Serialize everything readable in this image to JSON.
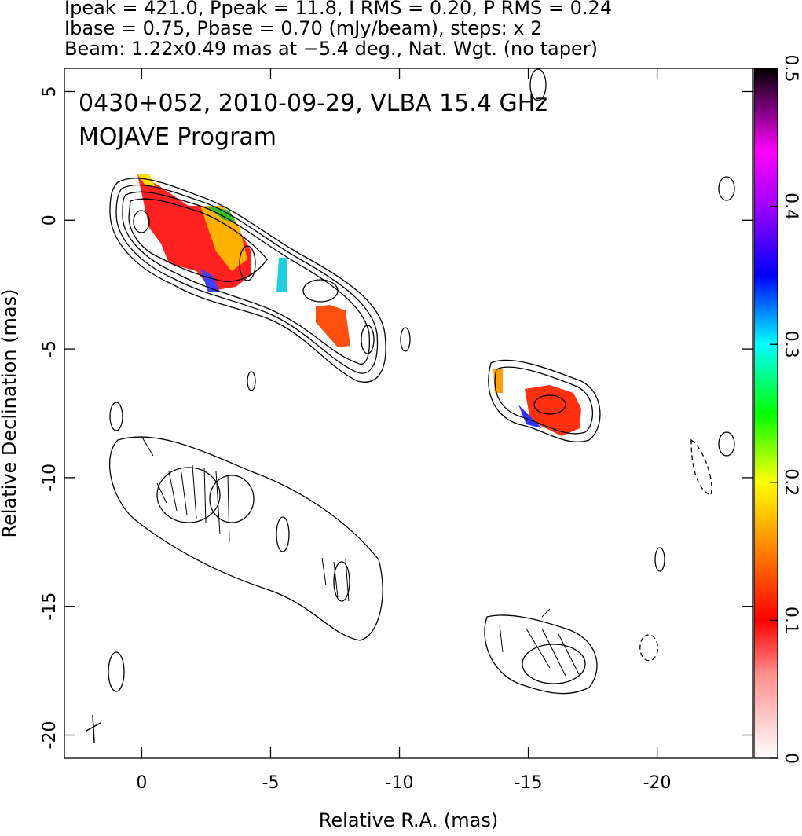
{
  "chart_data": {
    "type": "contour",
    "title_lines": [
      "Ipeak = 421.0, Ppeak = 11.8, I RMS = 0.20, P RMS = 0.24",
      "Ibase = 0.75, Pbase = 0.70 (mJy/beam), steps: x 2",
      "Beam: 1.22x0.49 mas at −5.4 deg., Nat. Wgt. (no taper)"
    ],
    "annotations": [
      "0430+052, 2010-09-29, VLBA 15.4 GHz",
      "MOJAVE Program"
    ],
    "x_label": "Relative R.A. (mas)",
    "y_label": "Relative Declination (mas)",
    "xlim": [
      3,
      -23.7
    ],
    "xticks": [
      0,
      -5,
      -10,
      -15,
      -20
    ],
    "ylim": [
      -20.9,
      5.9
    ],
    "yticks": [
      5,
      0,
      -5,
      -10,
      -15,
      -20
    ],
    "colorbar_lim": [
      0,
      0.5
    ],
    "colorbar_ticks": [
      0,
      0.1,
      0.2,
      0.3,
      0.4,
      0.5
    ]
  }
}
